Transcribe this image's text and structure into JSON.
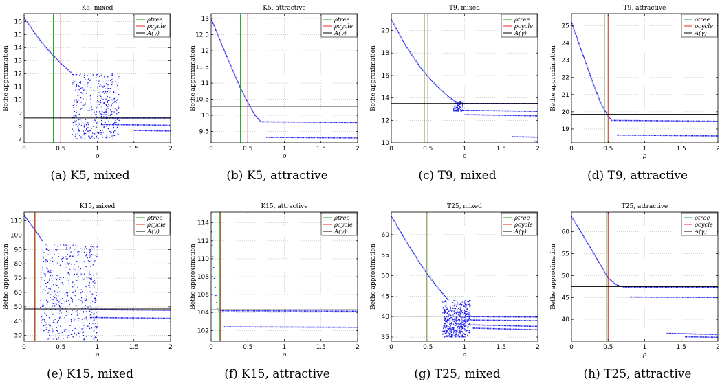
{
  "shared": {
    "ylabel": "Bethe approximation",
    "xlabel": "ρ",
    "legend": [
      "ρtree",
      "ρcycle",
      "A(γ)"
    ],
    "colors": {
      "tree": "#1a9e1a",
      "cycle": "#e8241c",
      "A": "#000000",
      "points": "#1c1cf0"
    }
  },
  "chart_data": [
    {
      "type": "scatter",
      "title": "K5, mixed",
      "caption": "(a) K5, mixed",
      "xlim": [
        0,
        2
      ],
      "ylim": [
        6.7,
        16.6
      ],
      "xticks": [
        0,
        0.5,
        1,
        1.5,
        2
      ],
      "xtick_labels": [
        "0",
        "0.5",
        "1",
        "1.5",
        "2"
      ],
      "yticks": [
        7,
        8,
        9,
        10,
        11,
        12,
        13,
        14,
        15,
        16
      ],
      "rho_tree": 0.4,
      "rho_cycle": 0.5,
      "A_gamma": 8.6,
      "series": [
        {
          "kind": "line",
          "points": [
            [
              0,
              16.3
            ],
            [
              0.1,
              15.5
            ],
            [
              0.2,
              14.7
            ],
            [
              0.3,
              14.0
            ],
            [
              0.4,
              13.4
            ],
            [
              0.5,
              12.8
            ],
            [
              0.6,
              12.3
            ],
            [
              0.66,
              12.0
            ]
          ]
        },
        {
          "kind": "cloud",
          "x_range": [
            0.66,
            1.3
          ],
          "y_range": [
            7.0,
            12.0
          ],
          "count": 420
        },
        {
          "kind": "line",
          "points": [
            [
              1.05,
              8.1
            ],
            [
              2.0,
              8.05
            ]
          ]
        },
        {
          "kind": "line",
          "points": [
            [
              1.5,
              7.65
            ],
            [
              2.0,
              7.6
            ]
          ]
        },
        {
          "kind": "line",
          "points": [
            [
              1.05,
              8.6
            ],
            [
              2.0,
              8.6
            ]
          ]
        }
      ]
    },
    {
      "type": "scatter",
      "title": "K5, attractive",
      "caption": "(b) K5, attractive",
      "xlim": [
        0,
        2
      ],
      "ylim": [
        9.15,
        13.15
      ],
      "xticks": [
        0,
        0.5,
        1,
        1.5,
        2
      ],
      "xtick_labels": [
        "0",
        "0.5",
        "1",
        "1.5",
        "2"
      ],
      "yticks": [
        9.5,
        10,
        10.5,
        11,
        11.5,
        12,
        12.5,
        13
      ],
      "rho_tree": 0.4,
      "rho_cycle": 0.5,
      "A_gamma": 10.28,
      "series": [
        {
          "kind": "line",
          "points": [
            [
              0,
              13.0
            ],
            [
              0.2,
              11.9
            ],
            [
              0.4,
              10.85
            ],
            [
              0.5,
              10.4
            ],
            [
              0.6,
              10.0
            ],
            [
              0.68,
              9.8
            ],
            [
              2.0,
              9.78
            ]
          ]
        },
        {
          "kind": "line",
          "points": [
            [
              0.75,
              9.32
            ],
            [
              2.0,
              9.3
            ]
          ]
        }
      ]
    },
    {
      "type": "scatter",
      "title": "T9, mixed",
      "caption": "(c) T9, mixed",
      "xlim": [
        0,
        2
      ],
      "ylim": [
        10,
        21.5
      ],
      "xticks": [
        0,
        0.5,
        1,
        1.5,
        2
      ],
      "xtick_labels": [
        "0",
        "0.5",
        "1",
        "1.5",
        "2"
      ],
      "yticks": [
        10,
        12,
        14,
        16,
        18,
        20
      ],
      "rho_tree": 0.45,
      "rho_cycle": 0.5,
      "A_gamma": 13.5,
      "series": [
        {
          "kind": "line",
          "points": [
            [
              0,
              21.0
            ],
            [
              0.2,
              18.6
            ],
            [
              0.4,
              16.7
            ],
            [
              0.5,
              15.9
            ],
            [
              0.6,
              15.2
            ],
            [
              0.7,
              14.6
            ],
            [
              0.8,
              14.0
            ],
            [
              0.9,
              13.6
            ],
            [
              1.0,
              13.5
            ],
            [
              2.0,
              13.5
            ]
          ]
        },
        {
          "kind": "cloud",
          "x_range": [
            0.85,
            0.98
          ],
          "y_range": [
            12.8,
            13.7
          ],
          "count": 90
        },
        {
          "kind": "line",
          "points": [
            [
              0.95,
              12.9
            ],
            [
              2.0,
              12.8
            ]
          ]
        },
        {
          "kind": "line",
          "points": [
            [
              1.0,
              12.5
            ],
            [
              2.0,
              12.4
            ]
          ]
        },
        {
          "kind": "line",
          "points": [
            [
              1.65,
              10.55
            ],
            [
              2.0,
              10.5
            ]
          ]
        },
        {
          "kind": "line",
          "points": [
            [
              1.95,
              10.15
            ],
            [
              2.0,
              10.12
            ]
          ]
        }
      ]
    },
    {
      "type": "scatter",
      "title": "T9, attractive",
      "caption": "(d) T9, attractive",
      "xlim": [
        0,
        2
      ],
      "ylim": [
        18.2,
        25.7
      ],
      "xticks": [
        0,
        0.5,
        1,
        1.5,
        2
      ],
      "xtick_labels": [
        "0",
        "0.5",
        "1",
        "1.5",
        "2"
      ],
      "yticks": [
        19,
        20,
        21,
        22,
        23,
        24,
        25
      ],
      "rho_tree": 0.45,
      "rho_cycle": 0.5,
      "A_gamma": 19.85,
      "series": [
        {
          "kind": "line",
          "points": [
            [
              0,
              25.2
            ],
            [
              0.1,
              24.0
            ],
            [
              0.2,
              22.8
            ],
            [
              0.3,
              21.6
            ],
            [
              0.4,
              20.5
            ],
            [
              0.5,
              19.75
            ],
            [
              0.55,
              19.5
            ],
            [
              2.0,
              19.45
            ]
          ]
        },
        {
          "kind": "line",
          "points": [
            [
              0.62,
              18.65
            ],
            [
              2.0,
              18.6
            ]
          ]
        }
      ]
    },
    {
      "type": "scatter",
      "title": "K15, mixed",
      "caption": "(e) K15, mixed",
      "xlim": [
        0,
        2
      ],
      "ylim": [
        26,
        116
      ],
      "xticks": [
        0,
        0.5,
        1,
        1.5,
        2
      ],
      "xtick_labels": [
        "0",
        "0.5",
        "1",
        "1.5",
        "2"
      ],
      "yticks": [
        30,
        40,
        50,
        60,
        70,
        80,
        90,
        100,
        110
      ],
      "rho_tree": 0.14,
      "rho_cycle": 0.15,
      "A_gamma": 48.5,
      "series": [
        {
          "kind": "line",
          "points": [
            [
              0,
              114
            ],
            [
              0.1,
              107
            ],
            [
              0.2,
              100
            ],
            [
              0.25,
              96
            ]
          ]
        },
        {
          "kind": "cloud",
          "x_range": [
            0.22,
            1.0
          ],
          "y_range": [
            27,
            95
          ],
          "count": 520
        },
        {
          "kind": "line",
          "points": [
            [
              0.9,
              48
            ],
            [
              2.0,
              47.5
            ]
          ]
        },
        {
          "kind": "line",
          "points": [
            [
              0.9,
              42.5
            ],
            [
              2.0,
              42.0
            ]
          ]
        }
      ]
    },
    {
      "type": "scatter",
      "title": "K15, attractive",
      "caption": "(f) K15, attractive",
      "xlim": [
        0,
        2
      ],
      "ylim": [
        100.8,
        115.2
      ],
      "xticks": [
        0,
        0.5,
        1,
        1.5,
        2
      ],
      "xtick_labels": [
        "0",
        "0.5",
        "1",
        "1.5",
        "2"
      ],
      "yticks": [
        102,
        104,
        106,
        108,
        110,
        112,
        114
      ],
      "rho_tree": 0.12,
      "rho_cycle": 0.13,
      "A_gamma": 104.3,
      "series": [
        {
          "kind": "dots",
          "points": [
            [
              0.005,
              113.0
            ],
            [
              0.015,
              111.5
            ],
            [
              0.025,
              110.2
            ],
            [
              0.035,
              109.0
            ],
            [
              0.045,
              107.8
            ],
            [
              0.055,
              106.8
            ],
            [
              0.065,
              105.9
            ],
            [
              0.075,
              105.1
            ],
            [
              0.09,
              104.5
            ]
          ]
        },
        {
          "kind": "line",
          "points": [
            [
              0.1,
              104.2
            ],
            [
              2.0,
              104.15
            ]
          ]
        },
        {
          "kind": "line",
          "points": [
            [
              0.16,
              102.4
            ],
            [
              2.0,
              102.35
            ]
          ]
        }
      ]
    },
    {
      "type": "scatter",
      "title": "T25, mixed",
      "caption": "(g) T25, mixed",
      "xlim": [
        0,
        2
      ],
      "ylim": [
        34,
        65.5
      ],
      "xticks": [
        0,
        0.5,
        1,
        1.5,
        2
      ],
      "xtick_labels": [
        "0",
        "0.5",
        "1",
        "1.5",
        "2"
      ],
      "yticks": [
        35,
        40,
        45,
        50,
        55,
        60
      ],
      "rho_tree": 0.48,
      "rho_cycle": 0.5,
      "A_gamma": 40.1,
      "series": [
        {
          "kind": "line",
          "points": [
            [
              0,
              64.5
            ],
            [
              0.1,
              61.5
            ],
            [
              0.2,
              58.5
            ],
            [
              0.3,
              55.6
            ],
            [
              0.4,
              52.8
            ],
            [
              0.5,
              50.2
            ],
            [
              0.6,
              47.8
            ],
            [
              0.7,
              45.7
            ],
            [
              0.78,
              44.0
            ]
          ]
        },
        {
          "kind": "cloud",
          "x_range": [
            0.7,
            1.08
          ],
          "y_range": [
            35.0,
            44.0
          ],
          "count": 520
        },
        {
          "kind": "line",
          "points": [
            [
              1.0,
              40.0
            ],
            [
              2.0,
              39.9
            ]
          ]
        },
        {
          "kind": "line",
          "points": [
            [
              1.0,
              39.2
            ],
            [
              2.0,
              39.0
            ]
          ]
        },
        {
          "kind": "line",
          "points": [
            [
              1.05,
              38.0
            ],
            [
              2.0,
              37.6
            ]
          ]
        },
        {
          "kind": "line",
          "points": [
            [
              1.1,
              37.2
            ],
            [
              2.0,
              36.8
            ]
          ]
        }
      ]
    },
    {
      "type": "scatter",
      "title": "T25, attractive",
      "caption": "(h) T25, attractive",
      "xlim": [
        0,
        2
      ],
      "ylim": [
        35,
        64.5
      ],
      "xticks": [
        0,
        0.5,
        1,
        1.5,
        2
      ],
      "xtick_labels": [
        "0",
        "0.5",
        "1",
        "1.5",
        "2"
      ],
      "yticks": [
        40,
        45,
        50,
        55,
        60
      ],
      "rho_tree": 0.48,
      "rho_cycle": 0.5,
      "A_gamma": 47.5,
      "series": [
        {
          "kind": "line",
          "points": [
            [
              0,
              63.5
            ],
            [
              0.1,
              60.8
            ],
            [
              0.2,
              58.0
            ],
            [
              0.3,
              55.2
            ],
            [
              0.4,
              52.3
            ],
            [
              0.5,
              49.5
            ],
            [
              0.6,
              48.0
            ],
            [
              0.7,
              47.4
            ],
            [
              2.0,
              47.3
            ]
          ]
        },
        {
          "kind": "line",
          "points": [
            [
              0.8,
              45.1
            ],
            [
              2.0,
              45.0
            ]
          ]
        },
        {
          "kind": "line",
          "points": [
            [
              1.3,
              36.8
            ],
            [
              2.0,
              36.5
            ]
          ]
        },
        {
          "kind": "line",
          "points": [
            [
              1.55,
              36.0
            ],
            [
              2.0,
              35.9
            ]
          ]
        }
      ]
    }
  ]
}
